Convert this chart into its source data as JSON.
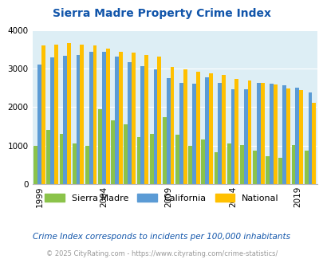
{
  "title": "Sierra Madre Property Crime Index",
  "years": [
    1999,
    2000,
    2001,
    2002,
    2003,
    2004,
    2005,
    2006,
    2007,
    2008,
    2009,
    2010,
    2011,
    2012,
    2013,
    2014,
    2015,
    2016,
    2017,
    2018,
    2019,
    2020
  ],
  "sierra_madre": [
    1000,
    1400,
    1300,
    1050,
    1000,
    1950,
    1650,
    1550,
    1230,
    1300,
    1750,
    1280,
    1000,
    1150,
    830,
    1050,
    1010,
    870,
    730,
    690,
    1010,
    880
  ],
  "california": [
    3100,
    3300,
    3340,
    3350,
    3430,
    3430,
    3320,
    3170,
    3060,
    2980,
    2750,
    2640,
    2620,
    2770,
    2640,
    2470,
    2460,
    2630,
    2610,
    2560,
    2510,
    2390
  ],
  "national": [
    3600,
    3630,
    3660,
    3630,
    3610,
    3520,
    3430,
    3420,
    3360,
    3320,
    3040,
    2990,
    2930,
    2890,
    2840,
    2730,
    2690,
    2640,
    2590,
    2480,
    2440,
    2110
  ],
  "colors": {
    "sierra_madre": "#8bc34a",
    "california": "#5b9bd5",
    "national": "#ffc000"
  },
  "ylim": [
    0,
    4000
  ],
  "yticks": [
    0,
    1000,
    2000,
    3000,
    4000
  ],
  "xtick_years": [
    1999,
    2004,
    2009,
    2014,
    2019
  ],
  "bg_color": "#ddeef5",
  "footnote1": "Crime Index corresponds to incidents per 100,000 inhabitants",
  "footnote2": "© 2025 CityRating.com - https://www.cityrating.com/crime-statistics/",
  "title_color": "#1155aa",
  "footnote1_color": "#1155aa",
  "footnote2_color": "#999999"
}
